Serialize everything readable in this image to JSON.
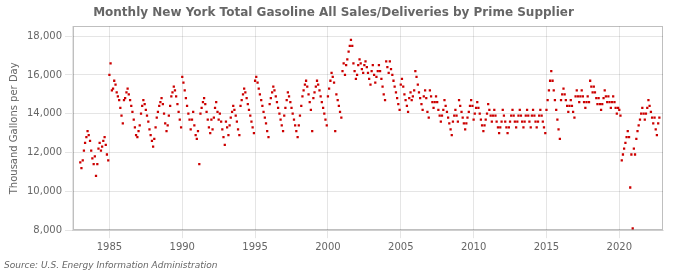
{
  "chart_data": {
    "type": "scatter",
    "title": "Monthly New York Total Gasoline All Sales/Deliveries by Prime Supplier",
    "ylabel": "Thousand Gallons per Day",
    "source": "Source: U.S. Energy Information Administration",
    "color": "#cc0000",
    "marker": "square",
    "grid": true,
    "xlim": [
      1982.5,
      2023.0
    ],
    "ylim": [
      8000,
      18500
    ],
    "xticks": [
      1985,
      1990,
      1995,
      2000,
      2005,
      2010,
      2015,
      2020
    ],
    "yticks": [
      {
        "value": 8000,
        "label": "8,000"
      },
      {
        "value": 10000,
        "label": "10,000"
      },
      {
        "value": 12000,
        "label": "12,000"
      },
      {
        "value": 14000,
        "label": "14,000"
      },
      {
        "value": 16000,
        "label": "16,000"
      },
      {
        "value": 18000,
        "label": "18,000"
      }
    ],
    "x": [
      1983.0,
      1983.08,
      1983.17,
      1983.25,
      1983.33,
      1983.42,
      1983.5,
      1983.58,
      1983.67,
      1983.75,
      1983.83,
      1983.92,
      1984.0,
      1984.08,
      1984.17,
      1984.25,
      1984.33,
      1984.42,
      1984.5,
      1984.58,
      1984.67,
      1984.75,
      1984.83,
      1984.92,
      1985.0,
      1985.08,
      1985.17,
      1985.25,
      1985.33,
      1985.42,
      1985.5,
      1985.58,
      1985.67,
      1985.75,
      1985.83,
      1985.92,
      1986.0,
      1986.08,
      1986.17,
      1986.25,
      1986.33,
      1986.42,
      1986.5,
      1986.58,
      1986.67,
      1986.75,
      1986.83,
      1986.92,
      1987.0,
      1987.08,
      1987.17,
      1987.25,
      1987.33,
      1987.42,
      1987.5,
      1987.58,
      1987.67,
      1987.75,
      1987.83,
      1987.92,
      1988.0,
      1988.08,
      1988.17,
      1988.25,
      1988.33,
      1988.42,
      1988.5,
      1988.58,
      1988.67,
      1988.75,
      1988.83,
      1988.92,
      1989.0,
      1989.08,
      1989.17,
      1989.25,
      1989.33,
      1989.42,
      1989.5,
      1989.58,
      1989.67,
      1989.75,
      1989.83,
      1989.92,
      1990.0,
      1990.08,
      1990.17,
      1990.25,
      1990.33,
      1990.42,
      1990.5,
      1990.58,
      1990.67,
      1990.75,
      1990.83,
      1990.92,
      1991.0,
      1991.08,
      1991.17,
      1991.25,
      1991.33,
      1991.42,
      1991.5,
      1991.58,
      1991.67,
      1991.75,
      1991.83,
      1991.92,
      1992.0,
      1992.08,
      1992.17,
      1992.25,
      1992.33,
      1992.42,
      1992.5,
      1992.58,
      1992.67,
      1992.75,
      1992.83,
      1992.92,
      1993.0,
      1993.08,
      1993.17,
      1993.25,
      1993.33,
      1993.42,
      1993.5,
      1993.58,
      1993.67,
      1993.75,
      1993.83,
      1993.92,
      1994.0,
      1994.08,
      1994.17,
      1994.25,
      1994.33,
      1994.42,
      1994.5,
      1994.58,
      1994.67,
      1994.75,
      1994.83,
      1994.92,
      1995.0,
      1995.08,
      1995.17,
      1995.25,
      1995.33,
      1995.42,
      1995.5,
      1995.58,
      1995.67,
      1995.75,
      1995.83,
      1995.92,
      1996.0,
      1996.08,
      1996.17,
      1996.25,
      1996.33,
      1996.42,
      1996.5,
      1996.58,
      1996.67,
      1996.75,
      1996.83,
      1996.92,
      1997.0,
      1997.08,
      1997.17,
      1997.25,
      1997.33,
      1997.42,
      1997.5,
      1997.58,
      1997.67,
      1997.75,
      1997.83,
      1997.92,
      1998.0,
      1998.08,
      1998.17,
      1998.25,
      1998.33,
      1998.42,
      1998.5,
      1998.58,
      1998.67,
      1998.75,
      1998.83,
      1998.92,
      1999.0,
      1999.08,
      1999.17,
      1999.25,
      1999.33,
      1999.42,
      1999.5,
      1999.58,
      1999.67,
      1999.75,
      1999.83,
      1999.92,
      2000.0,
      2000.08,
      2000.17,
      2000.25,
      2000.33,
      2000.42,
      2000.5,
      2000.58,
      2000.67,
      2000.75,
      2000.83,
      2000.92,
      2001.0,
      2001.08,
      2001.17,
      2001.25,
      2001.33,
      2001.42,
      2001.5,
      2001.58,
      2001.67,
      2001.75,
      2001.83,
      2001.92,
      2002.0,
      2002.08,
      2002.17,
      2002.25,
      2002.33,
      2002.42,
      2002.5,
      2002.58,
      2002.67,
      2002.75,
      2002.83,
      2002.92,
      2003.0,
      2003.08,
      2003.17,
      2003.25,
      2003.33,
      2003.42,
      2003.5,
      2003.58,
      2003.67,
      2003.75,
      2003.83,
      2003.92,
      2004.0,
      2004.08,
      2004.17,
      2004.25,
      2004.33,
      2004.42,
      2004.5,
      2004.58,
      2004.67,
      2004.75,
      2004.83,
      2004.92,
      2005.0,
      2005.08,
      2005.17,
      2005.25,
      2005.33,
      2005.42,
      2005.5,
      2005.58,
      2005.67,
      2005.75,
      2005.83,
      2005.92,
      2006.0,
      2006.08,
      2006.17,
      2006.25,
      2006.33,
      2006.42,
      2006.5,
      2006.58,
      2006.67,
      2006.75,
      2006.83,
      2006.92,
      2007.0,
      2007.08,
      2007.17,
      2007.25,
      2007.33,
      2007.42,
      2007.5,
      2007.58,
      2007.67,
      2007.75,
      2007.83,
      2007.92,
      2008.0,
      2008.08,
      2008.17,
      2008.25,
      2008.33,
      2008.42,
      2008.5,
      2008.58,
      2008.67,
      2008.75,
      2008.83,
      2008.92,
      2009.0,
      2009.08,
      2009.17,
      2009.25,
      2009.33,
      2009.42,
      2009.5,
      2009.58,
      2009.67,
      2009.75,
      2009.83,
      2009.92,
      2010.0,
      2010.08,
      2010.17,
      2010.25,
      2010.33,
      2010.42,
      2010.5,
      2010.58,
      2010.67,
      2010.75,
      2010.83,
      2010.92,
      2011.0,
      2011.08,
      2011.17,
      2011.25,
      2011.33,
      2011.42,
      2011.5,
      2011.58,
      2011.67,
      2011.75,
      2011.83,
      2011.92,
      2012.0,
      2012.08,
      2012.17,
      2012.25,
      2012.33,
      2012.42,
      2012.5,
      2012.58,
      2012.67,
      2012.75,
      2012.83,
      2012.92,
      2013.0,
      2013.08,
      2013.17,
      2013.25,
      2013.33,
      2013.42,
      2013.5,
      2013.58,
      2013.67,
      2013.75,
      2013.83,
      2013.92,
      2014.0,
      2014.08,
      2014.17,
      2014.25,
      2014.33,
      2014.42,
      2014.5,
      2014.58,
      2014.67,
      2014.75,
      2014.83,
      2014.92,
      2015.0,
      2015.08,
      2015.17,
      2015.25,
      2015.33,
      2015.42,
      2015.5,
      2015.58,
      2015.67,
      2015.75,
      2015.83,
      2015.92,
      2016.0,
      2016.08,
      2016.17,
      2016.25,
      2016.33,
      2016.42,
      2016.5,
      2016.58,
      2016.67,
      2016.75,
      2016.83,
      2016.92,
      2017.0,
      2017.08,
      2017.17,
      2017.25,
      2017.33,
      2017.42,
      2017.5,
      2017.58,
      2017.67,
      2017.75,
      2017.83,
      2017.92,
      2018.0,
      2018.08,
      2018.17,
      2018.25,
      2018.33,
      2018.42,
      2018.5,
      2018.58,
      2018.67,
      2018.75,
      2018.83,
      2018.92,
      2019.0,
      2019.08,
      2019.17,
      2019.25,
      2019.33,
      2019.42,
      2019.5,
      2019.58,
      2019.67,
      2019.75,
      2019.83,
      2019.92,
      2020.0,
      2020.08,
      2020.17,
      2020.25,
      2020.33,
      2020.42,
      2020.5,
      2020.58,
      2020.67,
      2020.75,
      2020.83,
      2020.92,
      2021.0,
      2021.08,
      2021.17,
      2021.25,
      2021.33,
      2021.42,
      2021.5,
      2021.58,
      2021.67,
      2021.75,
      2021.83,
      2021.92,
      2022.0,
      2022.08,
      2022.17,
      2022.25,
      2022.33,
      2022.42,
      2022.5,
      2022.58,
      2022.67,
      2022.75
    ],
    "values": [
      11500,
      11200,
      11600,
      12100,
      12500,
      12800,
      13100,
      12900,
      12600,
      12100,
      11700,
      11400,
      11800,
      10800,
      11400,
      12200,
      12500,
      12100,
      12300,
      12600,
      12800,
      12400,
      11900,
      11600,
      16000,
      16600,
      15200,
      15300,
      15700,
      15500,
      15100,
      14900,
      14700,
      14300,
      13900,
      13500,
      14700,
      14800,
      15100,
      15300,
      15000,
      14700,
      14400,
      14100,
      13700,
      13300,
      12900,
      12800,
      13100,
      13400,
      14000,
      14400,
      14700,
      14500,
      14200,
      13900,
      13600,
      13200,
      12900,
      12600,
      12300,
      12700,
      13300,
      13800,
      14100,
      14400,
      14600,
      14800,
      14500,
      14000,
      13500,
      13100,
      13400,
      13900,
      14400,
      14900,
      15100,
      15400,
      15200,
      14900,
      14500,
      14100,
      13700,
      13300,
      15900,
      15600,
      15200,
      14800,
      14400,
      14000,
      13700,
      13200,
      13700,
      14100,
      13400,
      12900,
      12700,
      13100,
      11400,
      14000,
      14300,
      14600,
      14800,
      14500,
      14100,
      13700,
      13300,
      13000,
      13700,
      13200,
      13800,
      14300,
      14600,
      14100,
      13700,
      14000,
      13600,
      13200,
      12800,
      12400,
      13600,
      13300,
      12900,
      13400,
      13800,
      14100,
      14400,
      14200,
      13900,
      13600,
      13200,
      12900,
      14400,
      14700,
      15000,
      15300,
      15100,
      14800,
      14500,
      14200,
      13900,
      13600,
      13300,
      13000,
      15700,
      15900,
      15600,
      15300,
      15000,
      14700,
      14400,
      14100,
      13800,
      13500,
      13100,
      12800,
      14500,
      14800,
      15100,
      15400,
      15200,
      14900,
      14600,
      14300,
      14000,
      13700,
      13400,
      13100,
      13900,
      14300,
      14700,
      15100,
      14900,
      14600,
      14300,
      14000,
      13700,
      13400,
      13100,
      12800,
      13400,
      13900,
      14400,
      14900,
      15200,
      15500,
      15700,
      15400,
      15000,
      14600,
      14200,
      13100,
      14800,
      15100,
      15400,
      15700,
      15500,
      15200,
      14900,
      14600,
      14300,
      14000,
      13700,
      13400,
      14900,
      15300,
      15700,
      16100,
      15900,
      15600,
      13100,
      15000,
      14700,
      14400,
      14100,
      13800,
      16200,
      16600,
      16000,
      16500,
      16800,
      17200,
      17500,
      17800,
      17500,
      16600,
      16200,
      15800,
      16000,
      16500,
      16800,
      16600,
      16300,
      16100,
      16500,
      16700,
      16400,
      16100,
      15800,
      15500,
      16200,
      16500,
      16000,
      15600,
      15900,
      16200,
      16500,
      16200,
      15800,
      15400,
      15000,
      14700,
      16700,
      16400,
      16100,
      16700,
      16300,
      16000,
      15700,
      15400,
      15100,
      14800,
      14500,
      14200,
      15500,
      15800,
      15400,
      15000,
      14700,
      14400,
      14100,
      14800,
      15100,
      14700,
      14900,
      15200,
      16200,
      15900,
      15500,
      15100,
      14800,
      14500,
      14200,
      14900,
      15200,
      14800,
      14100,
      13800,
      15200,
      14900,
      14600,
      14300,
      14600,
      14900,
      14600,
      14200,
      13900,
      13600,
      13900,
      14200,
      14700,
      14400,
      14100,
      13800,
      13500,
      13200,
      12900,
      13600,
      13900,
      14200,
      13900,
      13600,
      14700,
      14400,
      14100,
      13800,
      13500,
      13200,
      13500,
      13800,
      14100,
      14400,
      14700,
      14400,
      13700,
      14000,
      14300,
      14600,
      14300,
      14000,
      13700,
      13400,
      13100,
      13400,
      13700,
      14000,
      14500,
      14200,
      13900,
      13600,
      13900,
      14200,
      13900,
      13600,
      13300,
      13000,
      13300,
      13600,
      14200,
      13900,
      13600,
      13300,
      13000,
      13300,
      13600,
      13900,
      14200,
      13900,
      13600,
      13300,
      13600,
      13900,
      14200,
      13900,
      13600,
      13300,
      13600,
      13900,
      14200,
      13900,
      13600,
      13300,
      13900,
      14200,
      13900,
      13600,
      13300,
      13600,
      13900,
      14200,
      13900,
      13600,
      13300,
      13000,
      14200,
      14700,
      15200,
      15700,
      16200,
      15700,
      15200,
      14700,
      14200,
      13700,
      13200,
      12700,
      14700,
      15000,
      15300,
      15000,
      14700,
      14400,
      14100,
      14400,
      14700,
      14400,
      14100,
      13800,
      14900,
      15200,
      14900,
      14600,
      14900,
      15200,
      14900,
      14600,
      14300,
      14600,
      14900,
      14600,
      15700,
      15400,
      15100,
      15400,
      15100,
      14800,
      14500,
      14800,
      14500,
      14200,
      14500,
      14800,
      15200,
      14900,
      14600,
      14900,
      14600,
      14300,
      14600,
      14900,
      14600,
      14300,
      14000,
      14300,
      14200,
      13900,
      11600,
      11900,
      12200,
      12500,
      12800,
      13100,
      12800,
      10200,
      11900,
      8100,
      12200,
      11900,
      12700,
      13100,
      13400,
      13700,
      14000,
      14300,
      14000,
      13700,
      14000,
      14300,
      14700,
      14400,
      14100,
      13800,
      13500,
      13800,
      13200,
      12900,
      13500,
      13800
    ]
  }
}
